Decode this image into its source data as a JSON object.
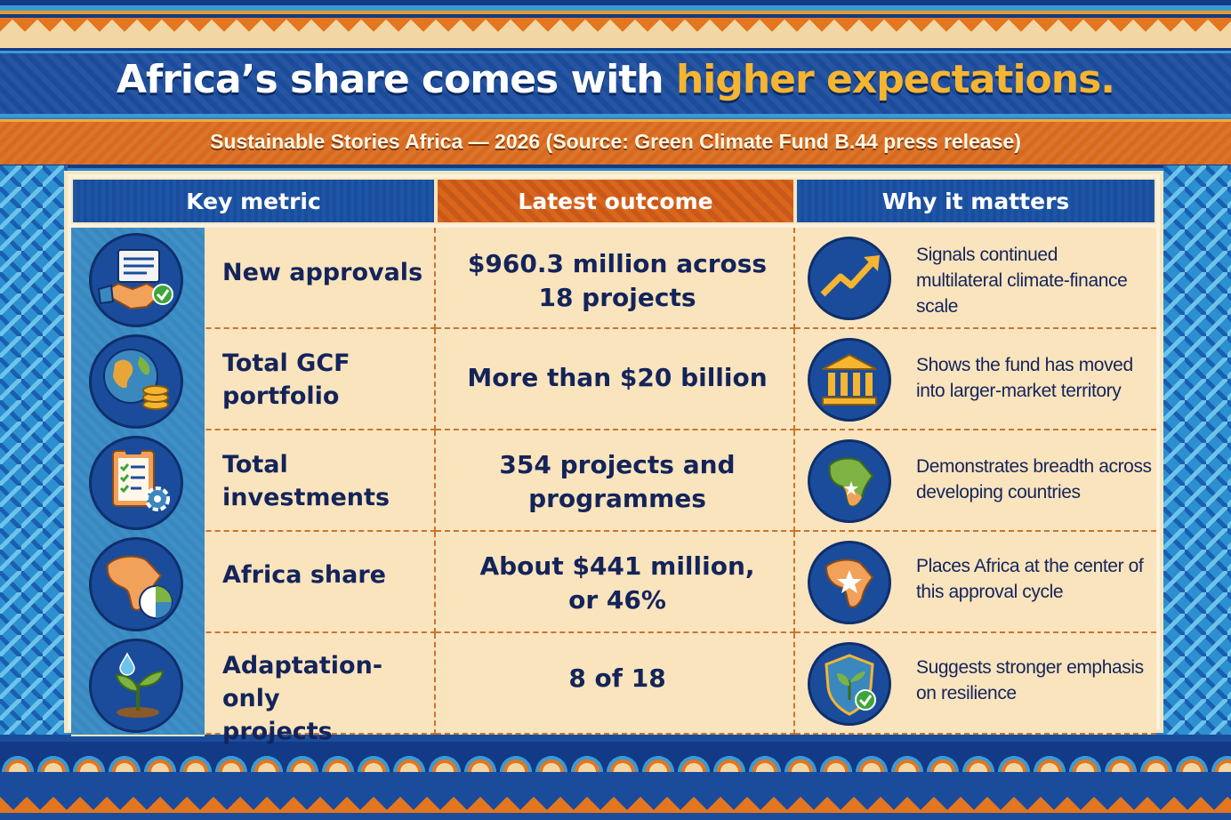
{
  "header": {
    "title_main": "Africa’s share comes with ",
    "title_highlight": "higher expectations.",
    "subtitle": "Sustainable Stories Africa — 2026  (Source: Green Climate Fund B.44 press release)"
  },
  "columns": {
    "metric": "Key metric",
    "outcome": "Latest outcome",
    "why": "Why it matters"
  },
  "colors": {
    "navy": "#1b4c9c",
    "orange": "#d9661b",
    "gold": "#f6b531",
    "cream": "#f9e4be",
    "text": "#14245a"
  },
  "rows": [
    {
      "icon": "handshake-document-icon",
      "metric": [
        "New approvals"
      ],
      "outcome": [
        "$960.3 million across",
        "18 projects"
      ],
      "why_icon": "trend-up-arrow-icon",
      "why": [
        "Signals continued",
        "multilateral climate-finance",
        "scale"
      ]
    },
    {
      "icon": "globe-coins-icon",
      "metric": [
        "Total GCF",
        "portfolio"
      ],
      "outcome": [
        "More than $20 billion"
      ],
      "why_icon": "bank-building-icon",
      "why": [
        "Shows the fund has moved",
        "into larger-market territory"
      ]
    },
    {
      "icon": "clipboard-checklist-gear-icon",
      "metric": [
        "Total",
        "investments"
      ],
      "outcome": [
        "354 projects and",
        "programmes"
      ],
      "why_icon": "africa-map-star-icon",
      "why": [
        "Demonstrates breadth across",
        "developing countries"
      ]
    },
    {
      "icon": "africa-pie-chart-icon",
      "metric": [
        "Africa share"
      ],
      "outcome": [
        "About $441 million,",
        "or 46%"
      ],
      "why_icon": "africa-star-icon",
      "why": [
        "Places Africa at the center of",
        "this approval cycle"
      ]
    },
    {
      "icon": "sprout-water-drop-icon",
      "metric": [
        "Adaptation-only",
        "projects"
      ],
      "outcome": [
        "8 of 18"
      ],
      "why_icon": "shield-leaf-check-icon",
      "why": [
        "Suggests stronger emphasis",
        "on resilience"
      ]
    }
  ]
}
